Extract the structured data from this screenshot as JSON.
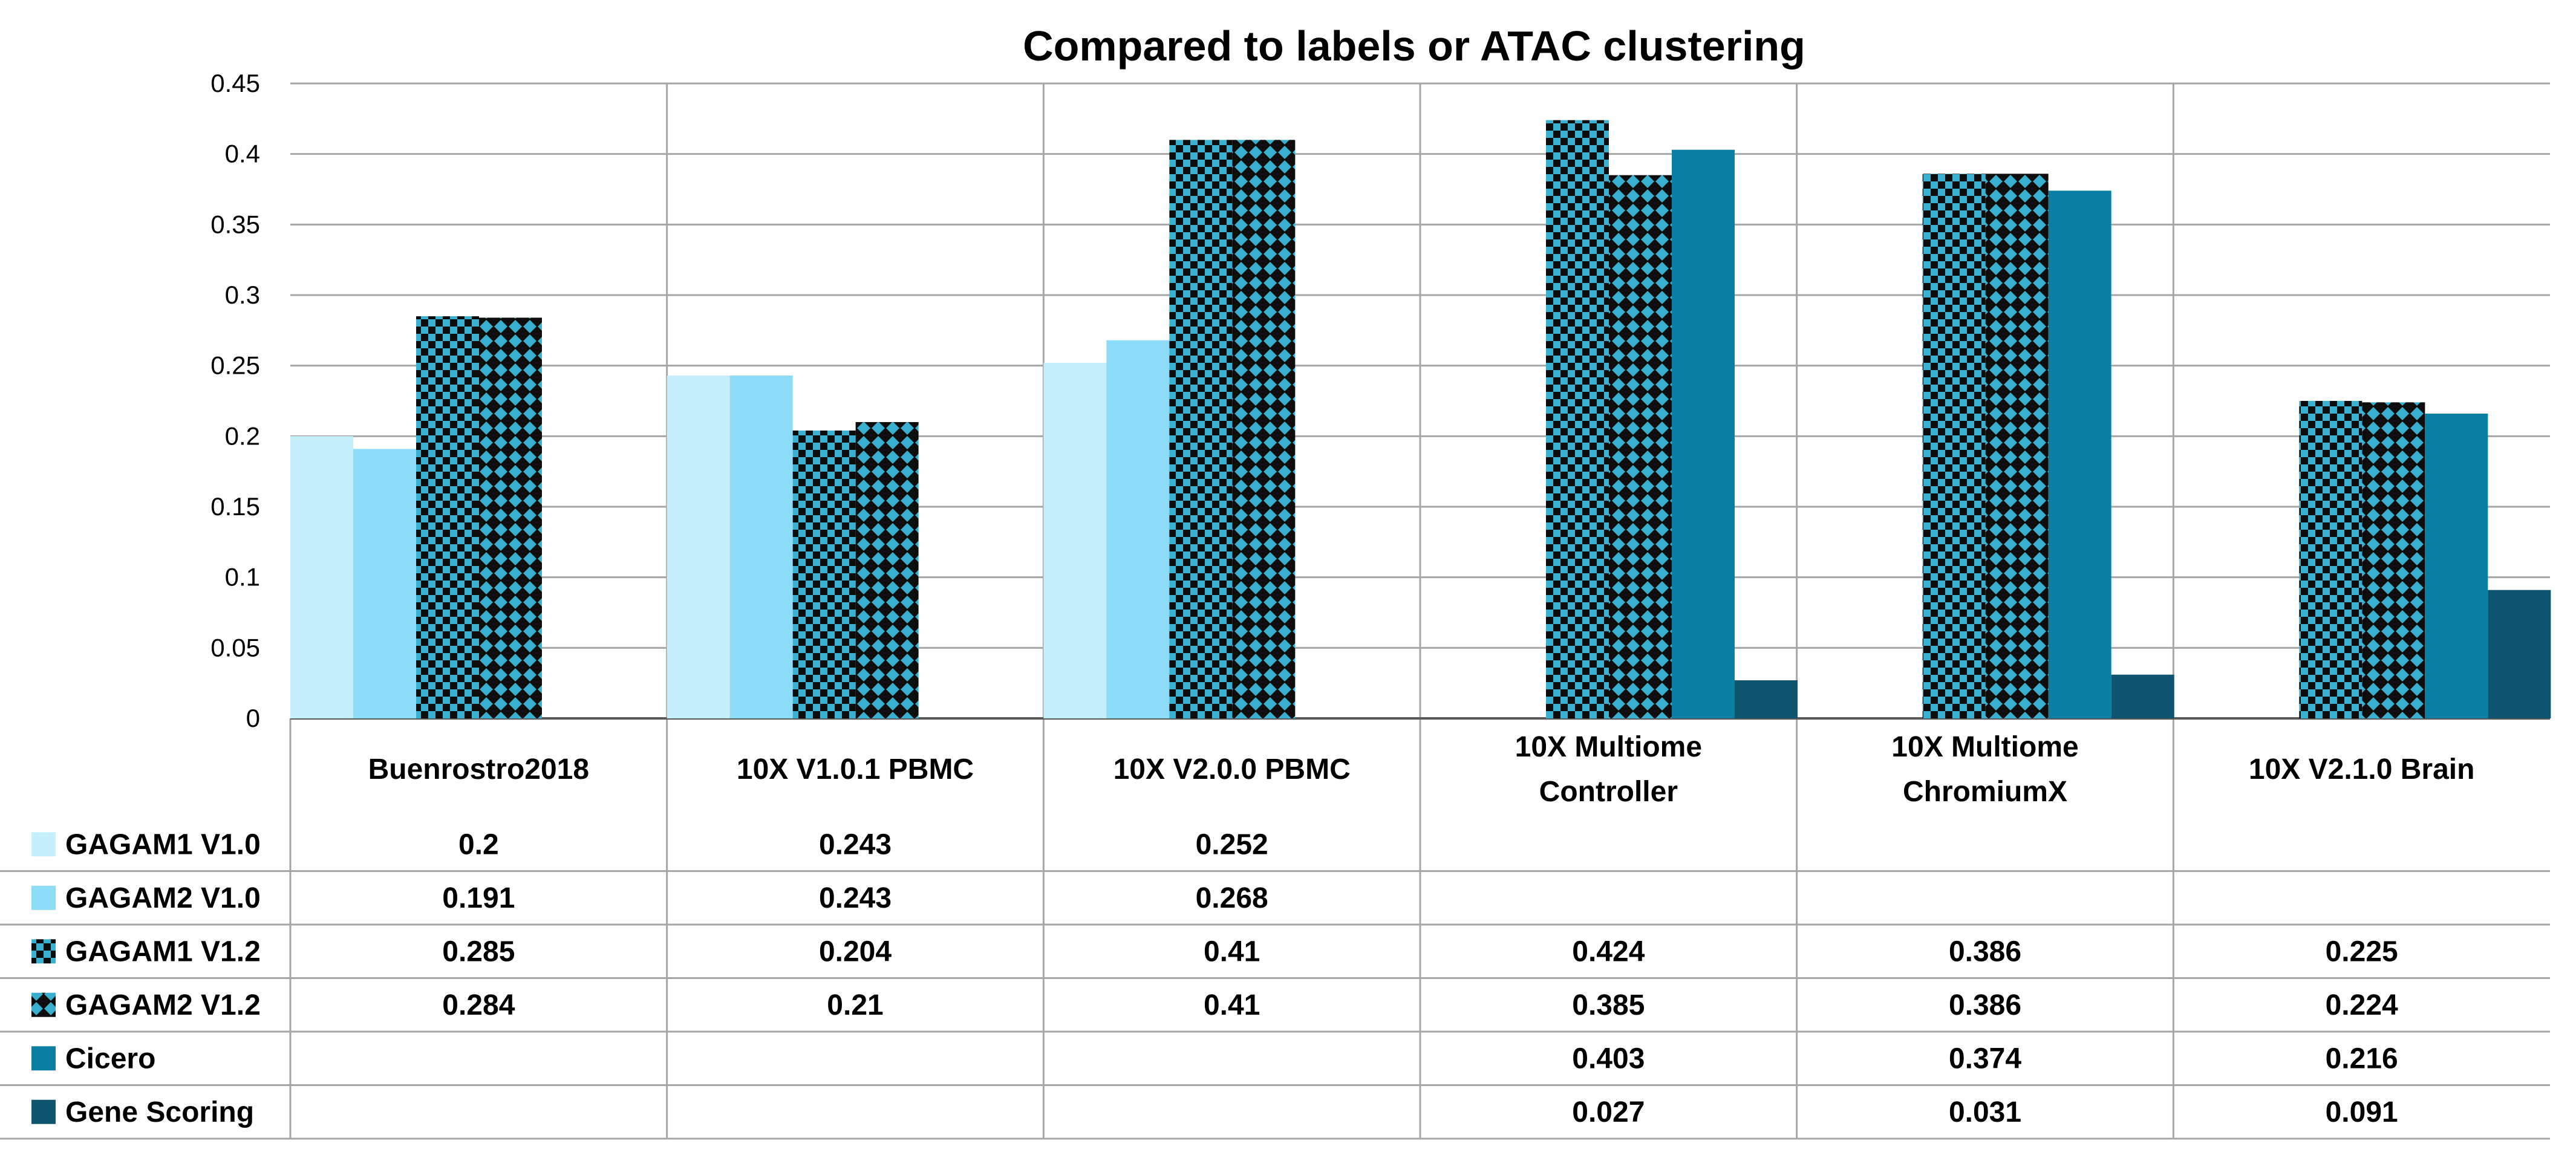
{
  "chart_data": {
    "type": "bar",
    "title": "Compared to labels or ATAC clustering",
    "xlabel": "",
    "ylabel": "",
    "ylim": [
      0,
      0.45
    ],
    "yticks": [
      "0",
      "0.05",
      "0.1",
      "0.15",
      "0.2",
      "0.25",
      "0.3",
      "0.35",
      "0.4",
      "0.45"
    ],
    "ytick_values": [
      0,
      0.05,
      0.1,
      0.15,
      0.2,
      0.25,
      0.3,
      0.35,
      0.4,
      0.45
    ],
    "grid": true,
    "legend": "data-table-left",
    "categories": [
      [
        "Buenrostro2018"
      ],
      [
        "10X V1.0.1 PBMC"
      ],
      [
        "10X V2.0.0 PBMC"
      ],
      [
        "10X Multiome",
        "Controller"
      ],
      [
        "10X Multiome",
        "ChromiumX"
      ],
      [
        "10X V2.1.0 Brain"
      ]
    ],
    "series": [
      {
        "name": "GAGAM1 V1.0",
        "color": "#c6effc",
        "pattern": "none",
        "values": [
          0.2,
          0.243,
          0.252,
          null,
          null,
          null
        ],
        "labels": [
          "0.2",
          "0.243",
          "0.252",
          "",
          "",
          ""
        ]
      },
      {
        "name": "GAGAM2 V1.0",
        "color": "#8cdcf7",
        "pattern": "none",
        "values": [
          0.191,
          0.243,
          0.268,
          null,
          null,
          null
        ],
        "labels": [
          "0.191",
          "0.243",
          "0.268",
          "",
          "",
          ""
        ]
      },
      {
        "name": "GAGAM1 V1.2",
        "color": "#3ab0d0",
        "pattern": "checker",
        "values": [
          0.285,
          0.204,
          0.41,
          0.424,
          0.386,
          0.225
        ],
        "labels": [
          "0.285",
          "0.204",
          "0.41",
          "0.424",
          "0.386",
          "0.225"
        ]
      },
      {
        "name": "GAGAM2 V1.2",
        "color": "#3ab0d0",
        "pattern": "diamond",
        "values": [
          0.284,
          0.21,
          0.41,
          0.385,
          0.386,
          0.224
        ],
        "labels": [
          "0.284",
          "0.21",
          "0.41",
          "0.385",
          "0.386",
          "0.224"
        ]
      },
      {
        "name": "Cicero",
        "color": "#0a7fa3",
        "pattern": "none",
        "values": [
          null,
          null,
          null,
          0.403,
          0.374,
          0.216
        ],
        "labels": [
          "",
          "",
          "",
          "0.403",
          "0.374",
          "0.216"
        ]
      },
      {
        "name": "Gene Scoring",
        "color": "#0f5570",
        "pattern": "none",
        "values": [
          null,
          null,
          null,
          0.027,
          0.031,
          0.091
        ],
        "labels": [
          "",
          "",
          "",
          "0.027",
          "0.031",
          "0.091"
        ]
      }
    ]
  }
}
